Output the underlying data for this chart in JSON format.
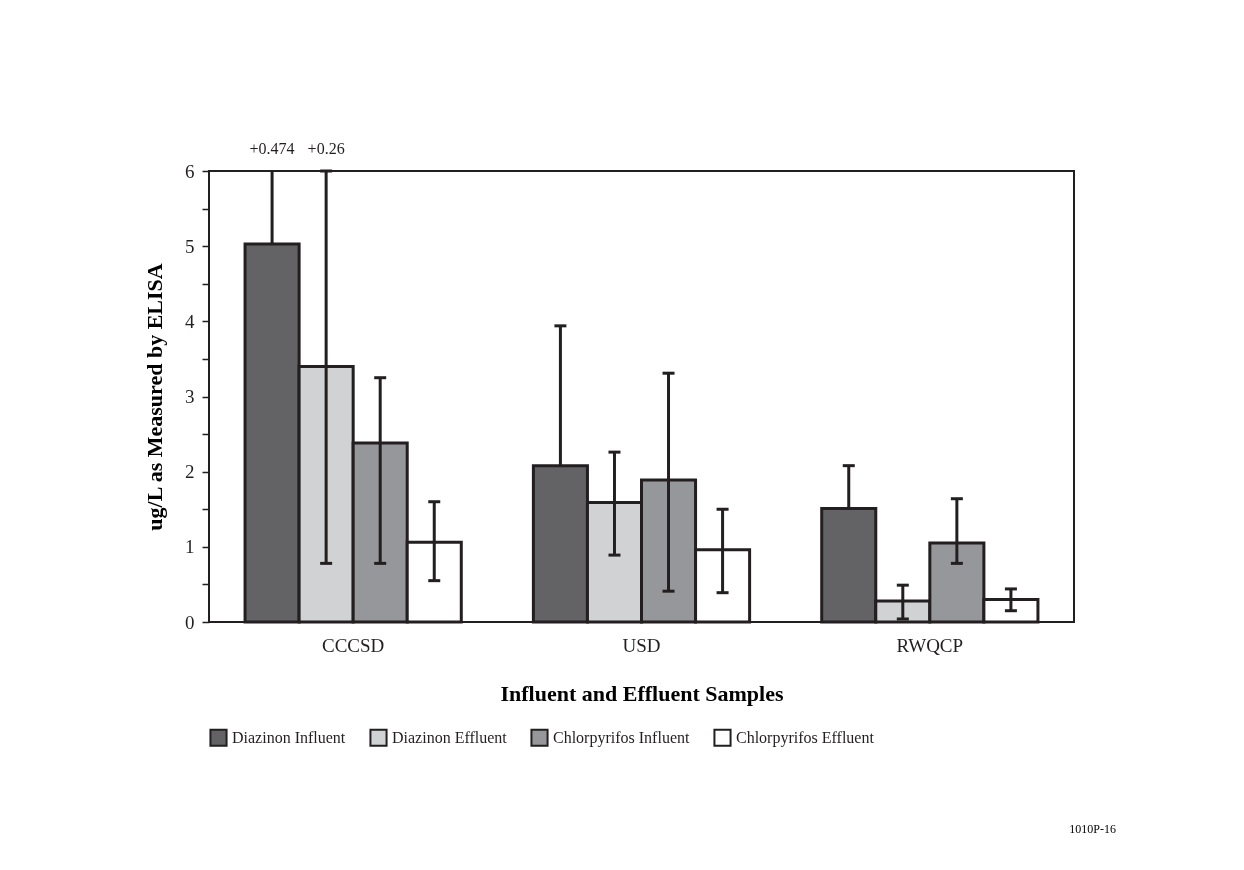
{
  "chart_data": {
    "type": "bar",
    "xlabel": "Influent and Effluent Samples",
    "ylabel": "ug/L as Measured by ELISA",
    "categories": [
      "CCCSD",
      "USD",
      "RWQCP"
    ],
    "series": [
      {
        "name": "Diazinon Influent",
        "color": "#636365",
        "values": [
          5.03,
          2.08,
          1.51
        ],
        "errors": [
          [
            5.03,
            6
          ],
          [
            2.08,
            3.94
          ],
          [
            1.51,
            2.08
          ]
        ]
      },
      {
        "name": "Diazinon Effluent",
        "color": "#d1d2d4",
        "values": [
          3.4,
          1.59,
          0.28
        ],
        "errors": [
          [
            0.78,
            6
          ],
          [
            0.89,
            2.26
          ],
          [
            0.04,
            0.49
          ]
        ]
      },
      {
        "name": "Chlorpyrifos Influent",
        "color": "#96979a",
        "values": [
          2.38,
          1.89,
          1.05
        ],
        "errors": [
          [
            0.78,
            3.25
          ],
          [
            0.41,
            3.31
          ],
          [
            0.78,
            1.64
          ]
        ]
      },
      {
        "name": "Chlorpyrifos Effluent",
        "color": "#ffffff",
        "values": [
          1.06,
          0.96,
          0.3
        ],
        "errors": [
          [
            0.55,
            1.6
          ],
          [
            0.39,
            1.5
          ],
          [
            0.15,
            0.44
          ]
        ]
      }
    ],
    "ylim": [
      0,
      6
    ],
    "yticks": [
      0,
      {
        "value": 0.5,
        "label": null
      },
      1,
      {
        "value": 1.5,
        "label": null
      },
      2,
      {
        "value": 2.5,
        "label": null
      },
      3,
      {
        "value": 3.5,
        "label": null
      },
      4,
      {
        "value": 4.5,
        "label": null
      },
      5,
      {
        "value": 5.5,
        "label": null
      },
      6
    ],
    "grid": false,
    "legend": "bottom",
    "annotations": [
      "+0.474",
      "+0.26",
      "1010P-16"
    ]
  }
}
